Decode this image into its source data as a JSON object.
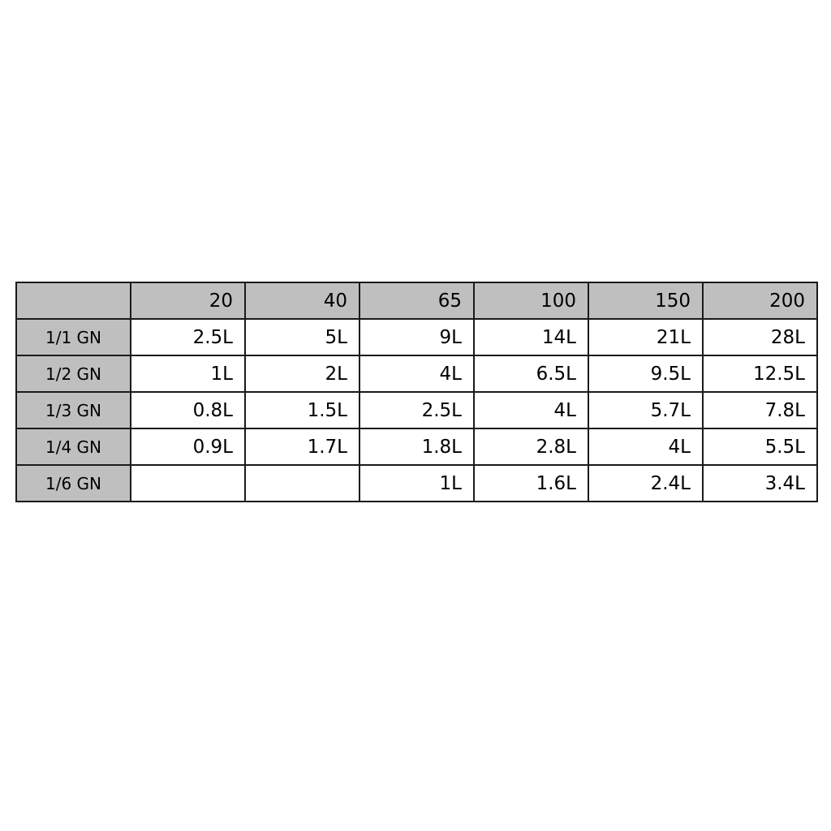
{
  "table": {
    "header_fill": "#bfbfbf",
    "columns": [
      "",
      "20",
      "40",
      "65",
      "100",
      "150",
      "200"
    ],
    "rows": [
      {
        "label": "1/1 GN",
        "cells": [
          "2.5L",
          "5L",
          "9L",
          "14L",
          "21L",
          "28L"
        ]
      },
      {
        "label": "1/2 GN",
        "cells": [
          "1L",
          "2L",
          "4L",
          "6.5L",
          "9.5L",
          "12.5L"
        ]
      },
      {
        "label": "1/3 GN",
        "cells": [
          "0.8L",
          "1.5L",
          "2.5L",
          "4L",
          "5.7L",
          "7.8L"
        ]
      },
      {
        "label": "1/4 GN",
        "cells": [
          "0.9L",
          "1.7L",
          "1.8L",
          "2.8L",
          "4L",
          "5.5L"
        ]
      },
      {
        "label": "1/6 GN",
        "cells": [
          "",
          "",
          "1L",
          "1.6L",
          "2.4L",
          "3.4L"
        ]
      }
    ]
  }
}
